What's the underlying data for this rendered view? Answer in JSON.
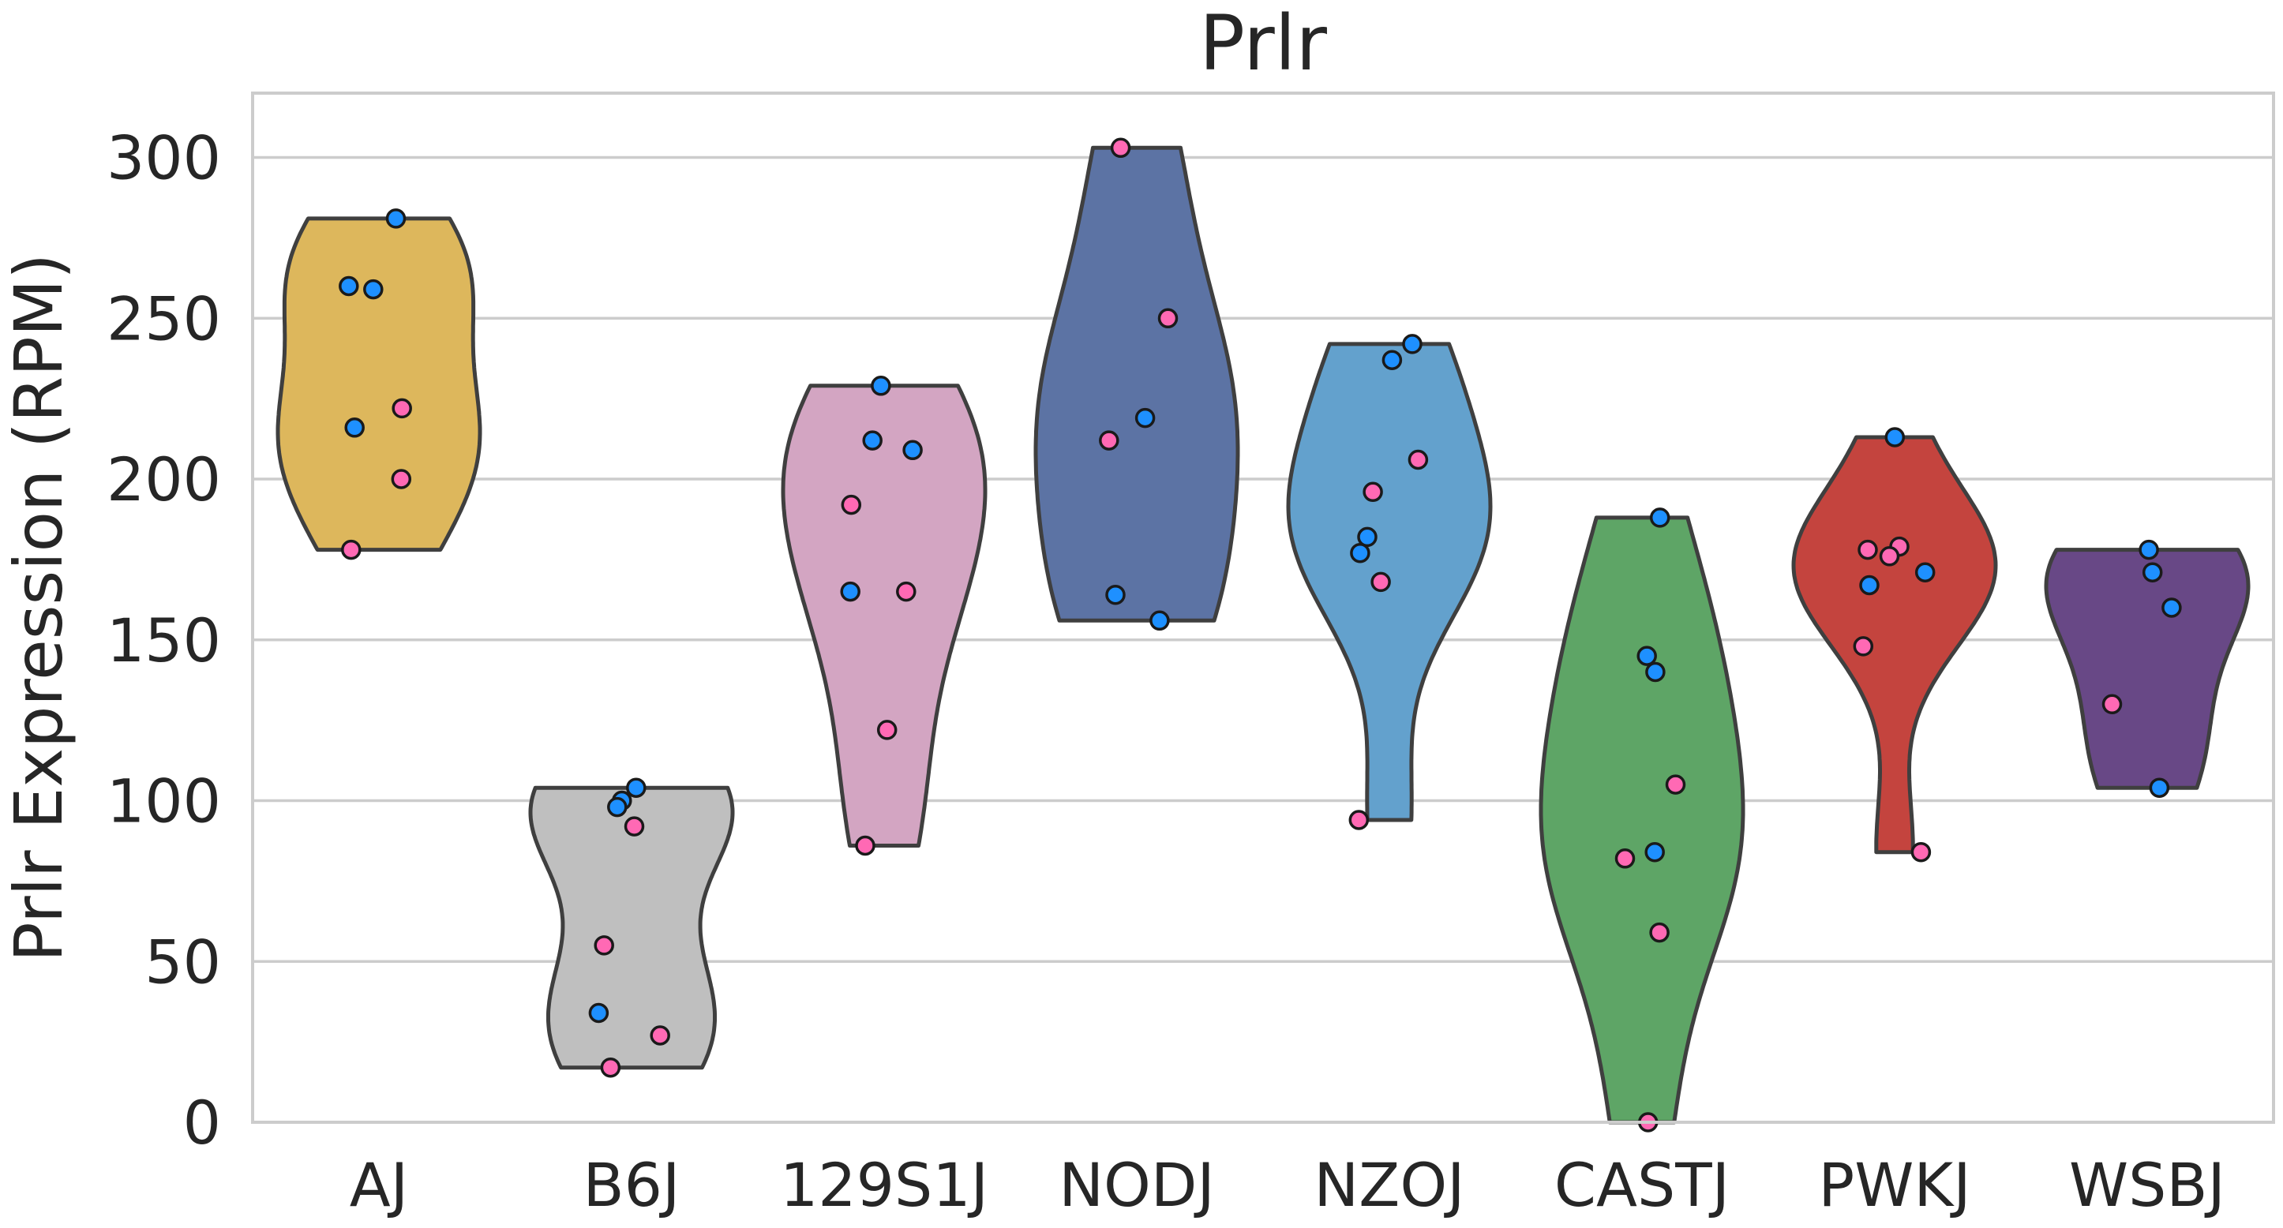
{
  "chart_data": {
    "type": "violin",
    "title": "Prlr",
    "xlabel": "",
    "ylabel": "Prlr Expression (RPM)",
    "ylim": [
      0,
      320
    ],
    "yticks": [
      0,
      50,
      100,
      150,
      200,
      250,
      300
    ],
    "grid": "horizontal",
    "categories": [
      "AJ",
      "B6J",
      "129S1J",
      "NODJ",
      "NZOJ",
      "CASTJ",
      "PWKJ",
      "WSBJ"
    ],
    "violin_colors": [
      "#ddb75c",
      "#bfbfbf",
      "#d3a5c2",
      "#5c73a4",
      "#63a1cd",
      "#5ea566",
      "#c4443e",
      "#684886"
    ],
    "point_colors": {
      "blue": "#1e90ff",
      "pink": "#ff69b4"
    },
    "series": [
      {
        "category": "AJ",
        "min": 178,
        "max": 281,
        "points": [
          {
            "y": 281,
            "group": "blue"
          },
          {
            "y": 260,
            "group": "blue"
          },
          {
            "y": 259,
            "group": "blue"
          },
          {
            "y": 222,
            "group": "pink"
          },
          {
            "y": 216,
            "group": "blue"
          },
          {
            "y": 200,
            "group": "pink"
          },
          {
            "y": 178,
            "group": "pink"
          }
        ]
      },
      {
        "category": "B6J",
        "min": 17,
        "max": 104,
        "points": [
          {
            "y": 104,
            "group": "blue"
          },
          {
            "y": 100,
            "group": "blue"
          },
          {
            "y": 98,
            "group": "blue"
          },
          {
            "y": 92,
            "group": "pink"
          },
          {
            "y": 55,
            "group": "pink"
          },
          {
            "y": 34,
            "group": "blue"
          },
          {
            "y": 27,
            "group": "pink"
          },
          {
            "y": 17,
            "group": "pink"
          }
        ]
      },
      {
        "category": "129S1J",
        "min": 86,
        "max": 229,
        "points": [
          {
            "y": 229,
            "group": "blue"
          },
          {
            "y": 212,
            "group": "blue"
          },
          {
            "y": 209,
            "group": "blue"
          },
          {
            "y": 192,
            "group": "pink"
          },
          {
            "y": 165,
            "group": "pink"
          },
          {
            "y": 165,
            "group": "blue"
          },
          {
            "y": 122,
            "group": "pink"
          },
          {
            "y": 86,
            "group": "pink"
          }
        ]
      },
      {
        "category": "NODJ",
        "min": 156,
        "max": 303,
        "points": [
          {
            "y": 303,
            "group": "pink"
          },
          {
            "y": 250,
            "group": "pink"
          },
          {
            "y": 219,
            "group": "blue"
          },
          {
            "y": 212,
            "group": "pink"
          },
          {
            "y": 164,
            "group": "blue"
          },
          {
            "y": 156,
            "group": "blue"
          }
        ]
      },
      {
        "category": "NZOJ",
        "min": 94,
        "max": 242,
        "points": [
          {
            "y": 242,
            "group": "blue"
          },
          {
            "y": 237,
            "group": "blue"
          },
          {
            "y": 206,
            "group": "pink"
          },
          {
            "y": 196,
            "group": "pink"
          },
          {
            "y": 182,
            "group": "blue"
          },
          {
            "y": 177,
            "group": "blue"
          },
          {
            "y": 168,
            "group": "pink"
          },
          {
            "y": 94,
            "group": "pink"
          }
        ]
      },
      {
        "category": "CASTJ",
        "min": 0,
        "max": 188,
        "points": [
          {
            "y": 188,
            "group": "blue"
          },
          {
            "y": 145,
            "group": "blue"
          },
          {
            "y": 140,
            "group": "blue"
          },
          {
            "y": 105,
            "group": "pink"
          },
          {
            "y": 84,
            "group": "blue"
          },
          {
            "y": 82,
            "group": "pink"
          },
          {
            "y": 59,
            "group": "pink"
          },
          {
            "y": 0,
            "group": "pink"
          }
        ]
      },
      {
        "category": "PWKJ",
        "min": 84,
        "max": 213,
        "points": [
          {
            "y": 213,
            "group": "blue"
          },
          {
            "y": 179,
            "group": "pink"
          },
          {
            "y": 178,
            "group": "pink"
          },
          {
            "y": 176,
            "group": "pink"
          },
          {
            "y": 171,
            "group": "blue"
          },
          {
            "y": 167,
            "group": "blue"
          },
          {
            "y": 148,
            "group": "pink"
          },
          {
            "y": 84,
            "group": "pink"
          }
        ]
      },
      {
        "category": "WSBJ",
        "min": 104,
        "max": 178,
        "points": [
          {
            "y": 178,
            "group": "blue"
          },
          {
            "y": 171,
            "group": "blue"
          },
          {
            "y": 160,
            "group": "blue"
          },
          {
            "y": 130,
            "group": "pink"
          },
          {
            "y": 104,
            "group": "blue"
          }
        ]
      }
    ]
  }
}
